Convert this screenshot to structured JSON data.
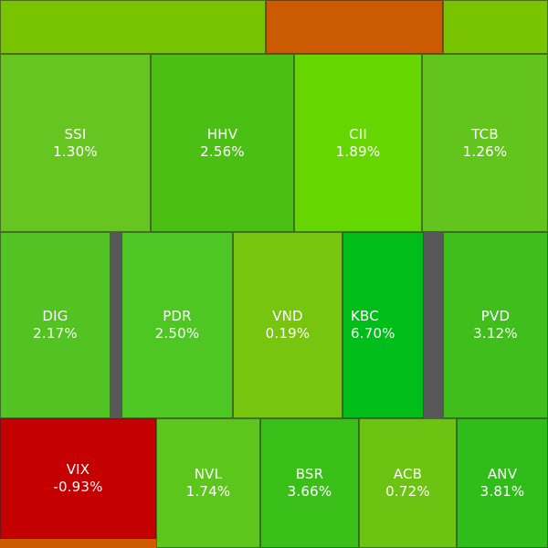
{
  "colors": {
    "gap": "#575757",
    "tile_border": "#3a3a3a",
    "text": "#ffffff"
  },
  "tiles": [
    {
      "symbol": "",
      "change": "",
      "color": "#78c400"
    },
    {
      "symbol": "",
      "change": "",
      "color": "#cc5a00"
    },
    {
      "symbol": "",
      "change": "",
      "color": "#78c400"
    },
    {
      "symbol": "SSI",
      "change": "1.30%",
      "color": "#66c520"
    },
    {
      "symbol": "HHV",
      "change": "2.56%",
      "color": "#4cbf14"
    },
    {
      "symbol": "CII",
      "change": "1.89%",
      "color": "#66d600"
    },
    {
      "symbol": "TCB",
      "change": "1.26%",
      "color": "#62c41c"
    },
    {
      "symbol": "DIG",
      "change": "2.17%",
      "color": "#52c322"
    },
    {
      "symbol": "PDR",
      "change": "2.50%",
      "color": "#4ec623"
    },
    {
      "symbol": "VND",
      "change": "0.19%",
      "color": "#78c510"
    },
    {
      "symbol": "KBC",
      "change": "6.70%",
      "color": "#00bd19"
    },
    {
      "symbol": "PVD",
      "change": "3.12%",
      "color": "#40bf1c"
    },
    {
      "symbol": "VIX",
      "change": "-0.93%",
      "color": "#c40000"
    },
    {
      "symbol": "NVL",
      "change": "1.74%",
      "color": "#5dc61d"
    },
    {
      "symbol": "BSR",
      "change": "3.66%",
      "color": "#3abf18"
    },
    {
      "symbol": "ACB",
      "change": "0.72%",
      "color": "#6cc311"
    },
    {
      "symbol": "ANV",
      "change": "3.81%",
      "color": "#30bd1a"
    },
    {
      "symbol": "",
      "change": "",
      "color": "#cc5a00"
    }
  ]
}
